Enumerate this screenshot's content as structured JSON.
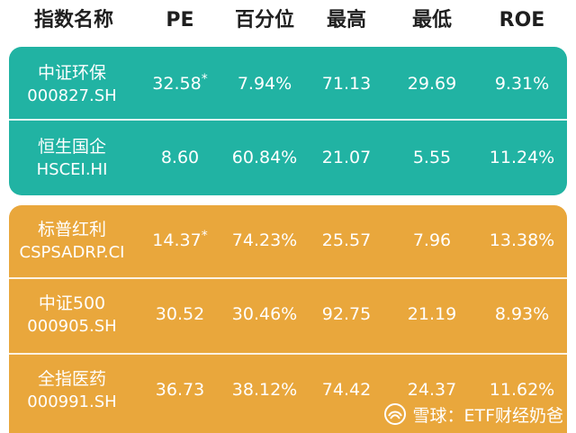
{
  "header": {
    "name": "指数名称",
    "pe": "PE",
    "pct": "百分位",
    "high": "最高",
    "low": "最低",
    "roe": "ROE"
  },
  "groups": [
    {
      "color": "#21b3a3",
      "rows": [
        {
          "name": "中证环保",
          "code": "000827.SH",
          "pe": "32.58",
          "pe_mark": "*",
          "pct": "7.94%",
          "high": "71.13",
          "low": "29.69",
          "roe": "9.31%"
        },
        {
          "name": "恒生国企",
          "code": "HSCEI.HI",
          "pe": "8.60",
          "pe_mark": "",
          "pct": "60.84%",
          "high": "21.07",
          "low": "5.55",
          "roe": "11.24%"
        }
      ]
    },
    {
      "color": "#e9a73c",
      "rows": [
        {
          "name": "标普红利",
          "code": "CSPSADRP.CI",
          "pe": "14.37",
          "pe_mark": "*",
          "pct": "74.23%",
          "high": "25.57",
          "low": "7.96",
          "roe": "13.38%"
        },
        {
          "name": "中证500",
          "code": "000905.SH",
          "pe": "30.52",
          "pe_mark": "",
          "pct": "30.46%",
          "high": "92.75",
          "low": "21.19",
          "roe": "8.93%"
        },
        {
          "name": "全指医药",
          "code": "000991.SH",
          "pe": "36.73",
          "pe_mark": "",
          "pct": "38.12%",
          "high": "74.42",
          "low": "24.37",
          "roe": "11.62%"
        }
      ]
    }
  ],
  "watermark": {
    "icon": "snowball-logo-icon",
    "text": "雪球：ETF财经奶爸"
  }
}
